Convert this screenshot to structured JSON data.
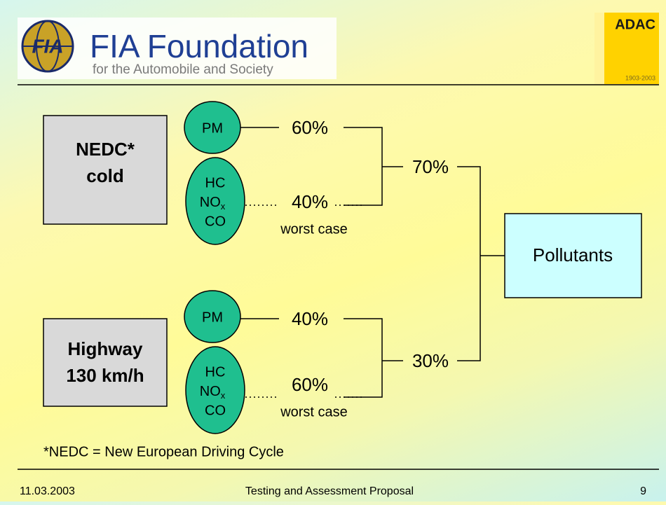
{
  "header": {
    "logo_title": "FIA Foundation",
    "logo_subtitle": "for the Automobile and Society",
    "partner_logo": "ADAC",
    "partner_years": "1903-2003"
  },
  "cycles": [
    {
      "label": [
        "NEDC*",
        "cold"
      ],
      "share": "70%",
      "pm": {
        "label": "PM",
        "share": "60%"
      },
      "gases": {
        "labels": [
          "HC",
          "NO",
          "x",
          "CO"
        ],
        "share": "40%",
        "note": "worst case"
      }
    },
    {
      "label": [
        "Highway",
        "130 km/h"
      ],
      "share": "30%",
      "pm": {
        "label": "PM",
        "share": "40%"
      },
      "gases": {
        "labels": [
          "HC",
          "NO",
          "x",
          "CO"
        ],
        "share": "60%",
        "note": "worst case"
      }
    }
  ],
  "result": "Pollutants",
  "footnote": "*NEDC = New European Driving Cycle",
  "footer": {
    "date": "11.03.2003",
    "title": "Testing and Assessment Proposal",
    "page": "9"
  }
}
